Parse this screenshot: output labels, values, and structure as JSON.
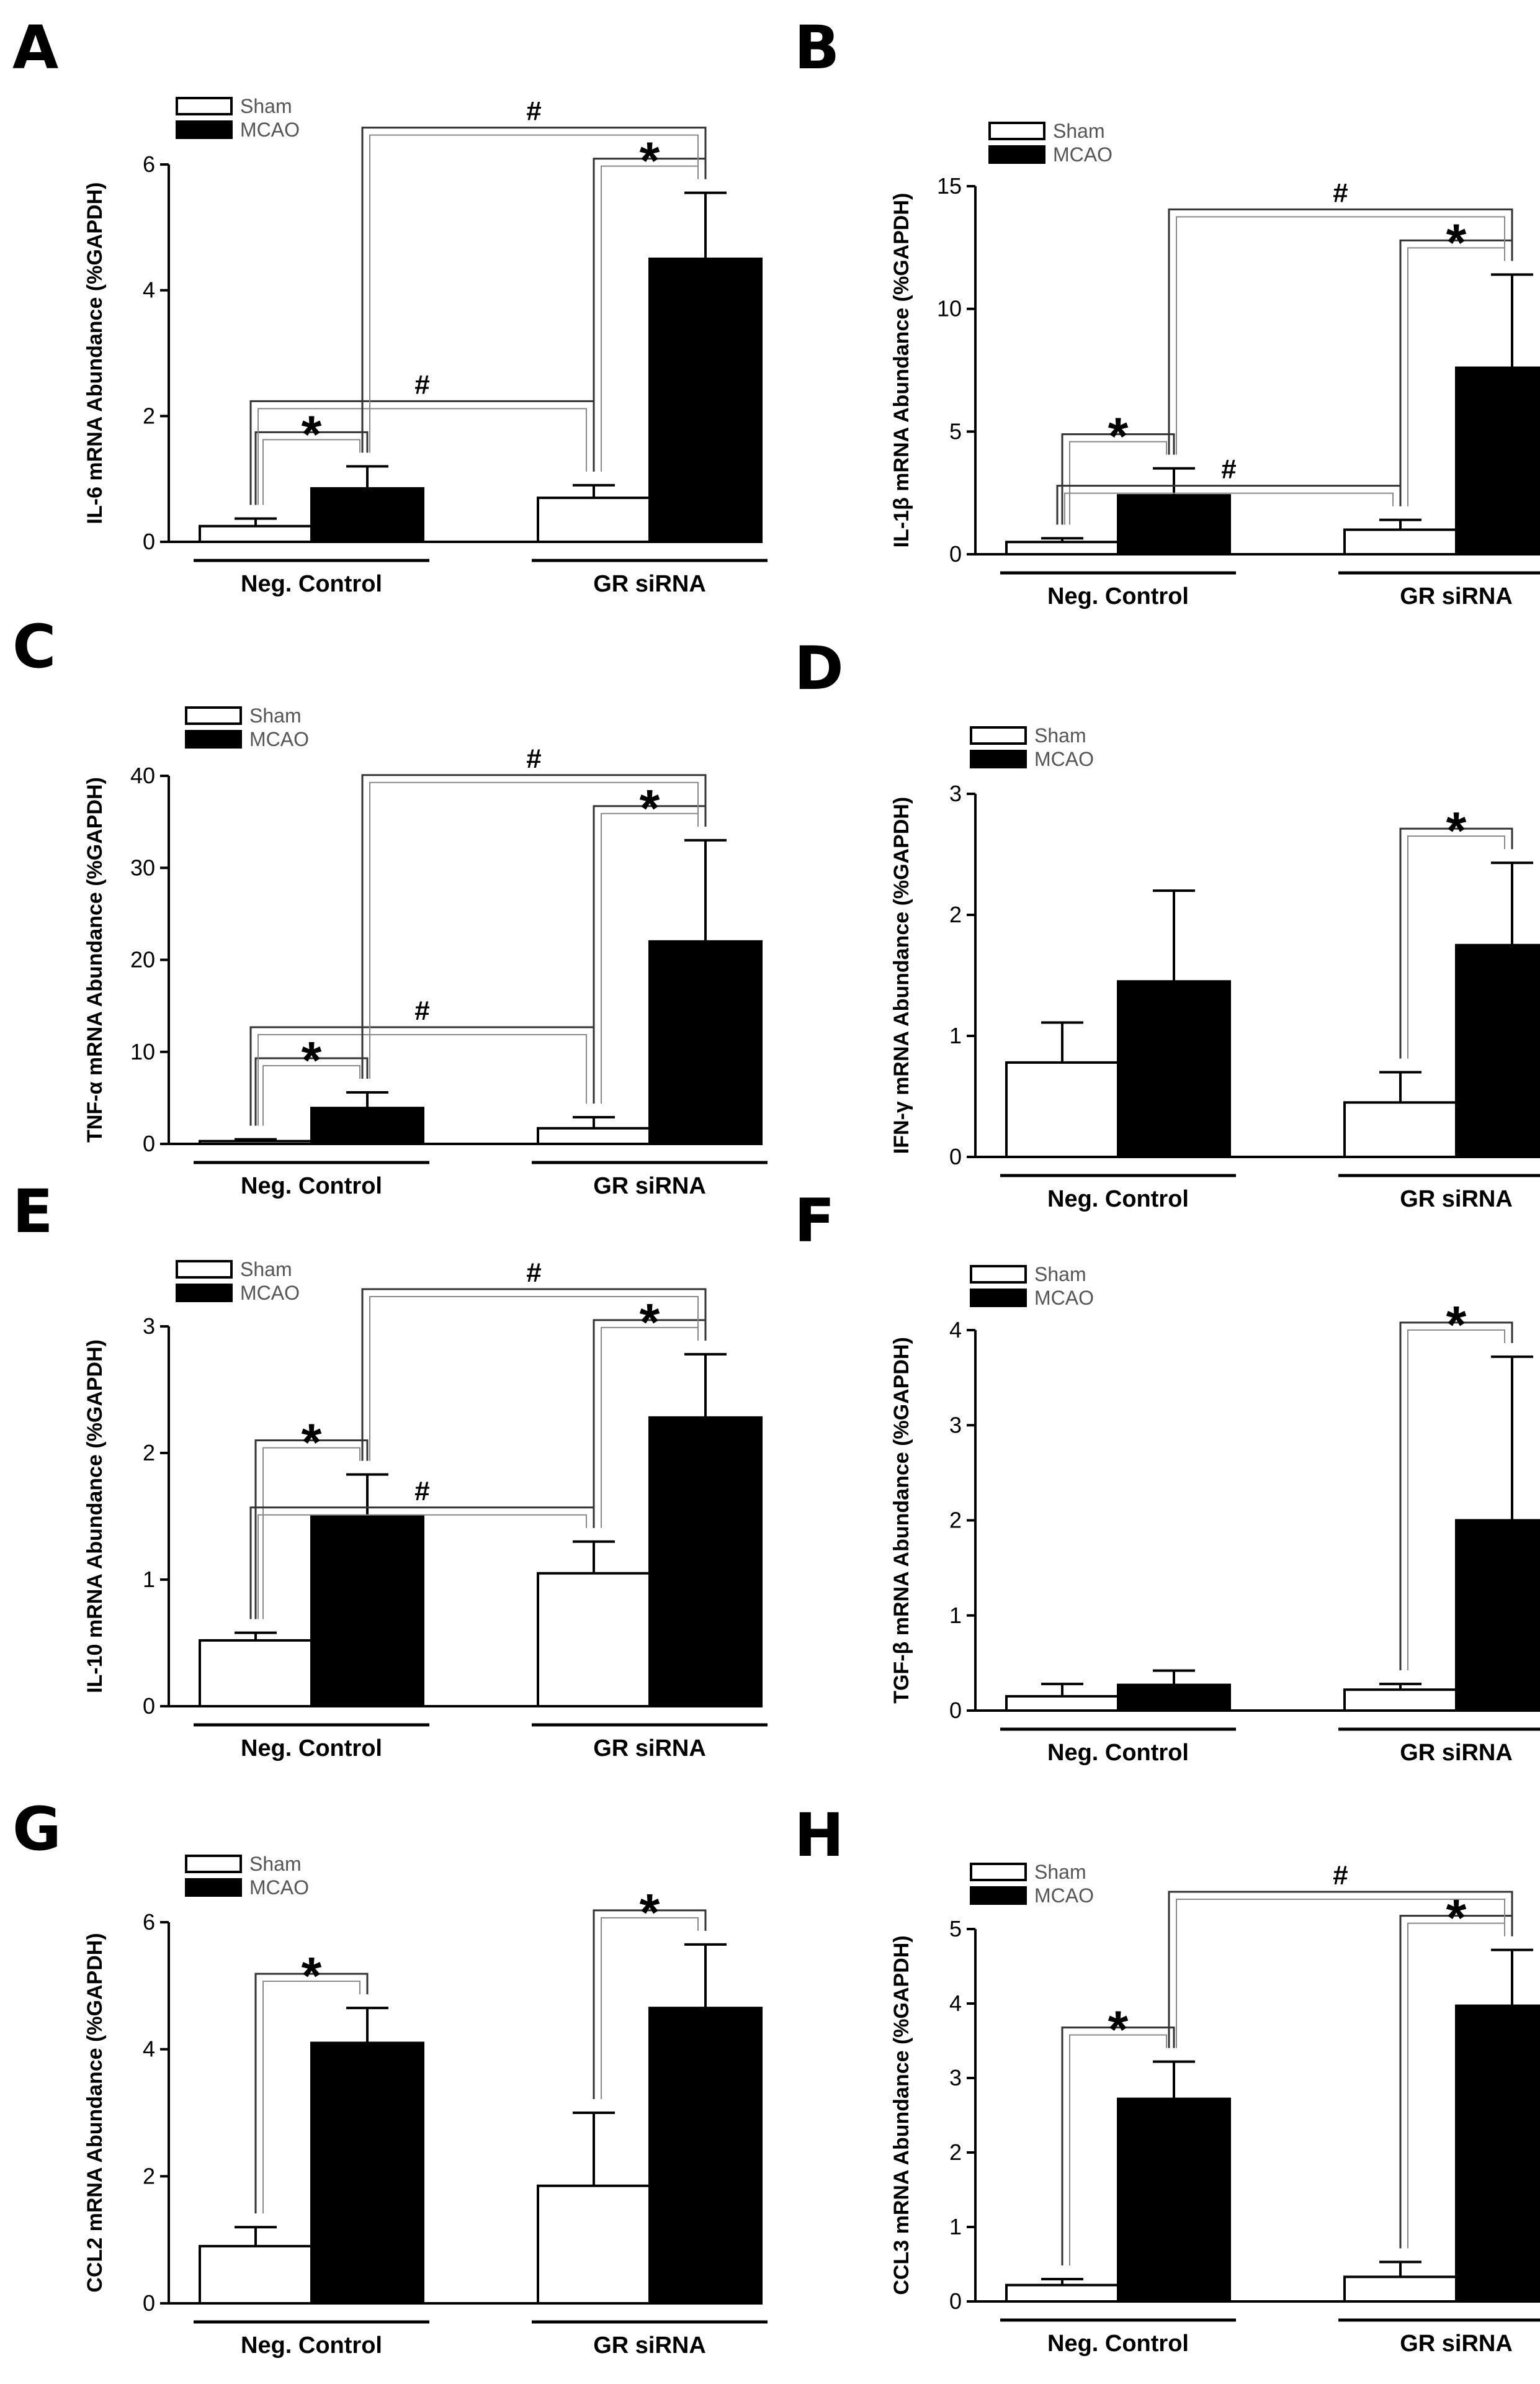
{
  "figure": {
    "legend": {
      "sham": "Sham",
      "mcao": "MCAO"
    },
    "groups": [
      "Neg. Control",
      "GR siRNA"
    ],
    "star": "*",
    "hash": "#",
    "colors": {
      "sham": "#ffffff",
      "mcao": "#000000",
      "stroke": "#000000",
      "text": "#000000"
    }
  },
  "chart_data": [
    {
      "panel": "A",
      "type": "bar",
      "ylabel": "IL-6 mRNA Abundance (%GAPDH)",
      "categories": [
        "Neg. Control",
        "GR siRNA"
      ],
      "ylim": [
        0,
        6
      ],
      "yticks": [
        0,
        2,
        4,
        6
      ],
      "series": [
        {
          "name": "Sham",
          "values": [
            0.25,
            0.7
          ],
          "errors": [
            0.12,
            0.2
          ]
        },
        {
          "name": "MCAO",
          "values": [
            0.85,
            4.5
          ],
          "errors": [
            0.35,
            1.05
          ]
        }
      ],
      "annotations": [
        {
          "type": "bracket",
          "from": [
            0,
            0
          ],
          "to": [
            0,
            1
          ],
          "label": "*"
        },
        {
          "type": "bracket",
          "from": [
            1,
            0
          ],
          "to": [
            1,
            1
          ],
          "label": "*"
        },
        {
          "type": "bracket",
          "from": [
            0,
            0
          ],
          "to": [
            1,
            0
          ],
          "label": "#"
        },
        {
          "type": "bracket",
          "from": [
            0,
            1
          ],
          "to": [
            1,
            1
          ],
          "label": "#"
        }
      ]
    },
    {
      "panel": "B",
      "type": "bar",
      "ylabel": "IL-1β mRNA Abundance (%GAPDH)",
      "categories": [
        "Neg. Control",
        "GR siRNA"
      ],
      "ylim": [
        0,
        15
      ],
      "yticks": [
        0,
        5,
        10,
        15
      ],
      "series": [
        {
          "name": "Sham",
          "values": [
            0.5,
            1.0
          ],
          "errors": [
            0.15,
            0.4
          ]
        },
        {
          "name": "MCAO",
          "values": [
            2.4,
            7.6
          ],
          "errors": [
            1.1,
            3.8
          ]
        }
      ],
      "annotations": [
        {
          "type": "bracket",
          "from": [
            0,
            0
          ],
          "to": [
            0,
            1
          ],
          "label": "*"
        },
        {
          "type": "bracket",
          "from": [
            1,
            0
          ],
          "to": [
            1,
            1
          ],
          "label": "*"
        },
        {
          "type": "bracket",
          "from": [
            0,
            0
          ],
          "to": [
            1,
            0
          ],
          "label": "#"
        },
        {
          "type": "bracket",
          "from": [
            0,
            1
          ],
          "to": [
            1,
            1
          ],
          "label": "#"
        }
      ]
    },
    {
      "panel": "C",
      "type": "bar",
      "ylabel": "TNF-α mRNA Abundance (%GAPDH)",
      "categories": [
        "Neg. Control",
        "GR siRNA"
      ],
      "ylim": [
        0,
        40
      ],
      "yticks": [
        0,
        10,
        20,
        30,
        40
      ],
      "series": [
        {
          "name": "Sham",
          "values": [
            0.3,
            1.7
          ],
          "errors": [
            0.2,
            1.2
          ]
        },
        {
          "name": "MCAO",
          "values": [
            3.9,
            22.0
          ],
          "errors": [
            1.7,
            11.0
          ]
        }
      ],
      "annotations": [
        {
          "type": "bracket",
          "from": [
            0,
            0
          ],
          "to": [
            0,
            1
          ],
          "label": "*"
        },
        {
          "type": "bracket",
          "from": [
            1,
            0
          ],
          "to": [
            1,
            1
          ],
          "label": "*"
        },
        {
          "type": "bracket",
          "from": [
            0,
            0
          ],
          "to": [
            1,
            0
          ],
          "label": "#"
        },
        {
          "type": "bracket",
          "from": [
            0,
            1
          ],
          "to": [
            1,
            1
          ],
          "label": "#"
        }
      ]
    },
    {
      "panel": "D",
      "type": "bar",
      "ylabel": "IFN-γ mRNA Abundance (%GAPDH)",
      "categories": [
        "Neg. Control",
        "GR siRNA"
      ],
      "ylim": [
        0,
        3
      ],
      "yticks": [
        0,
        1,
        2,
        3
      ],
      "series": [
        {
          "name": "Sham",
          "values": [
            0.78,
            0.45
          ],
          "errors": [
            0.33,
            0.25
          ]
        },
        {
          "name": "MCAO",
          "values": [
            1.45,
            1.75
          ],
          "errors": [
            0.75,
            0.68
          ]
        }
      ],
      "annotations": [
        {
          "type": "bracket",
          "from": [
            1,
            0
          ],
          "to": [
            1,
            1
          ],
          "label": "*"
        }
      ]
    },
    {
      "panel": "E",
      "type": "bar",
      "ylabel": "IL-10 mRNA Abundance (%GAPDH)",
      "categories": [
        "Neg. Control",
        "GR siRNA"
      ],
      "ylim": [
        0,
        3
      ],
      "yticks": [
        0,
        1,
        2,
        3
      ],
      "series": [
        {
          "name": "Sham",
          "values": [
            0.52,
            1.05
          ],
          "errors": [
            0.06,
            0.25
          ]
        },
        {
          "name": "MCAO",
          "values": [
            1.5,
            2.28
          ],
          "errors": [
            0.33,
            0.5
          ]
        }
      ],
      "annotations": [
        {
          "type": "bracket",
          "from": [
            0,
            0
          ],
          "to": [
            0,
            1
          ],
          "label": "*"
        },
        {
          "type": "bracket",
          "from": [
            1,
            0
          ],
          "to": [
            1,
            1
          ],
          "label": "*"
        },
        {
          "type": "bracket",
          "from": [
            0,
            0
          ],
          "to": [
            1,
            0
          ],
          "label": "#"
        },
        {
          "type": "bracket",
          "from": [
            0,
            1
          ],
          "to": [
            1,
            1
          ],
          "label": "#"
        }
      ]
    },
    {
      "panel": "F",
      "type": "bar",
      "ylabel": "TGF-β mRNA Abundance (%GAPDH)",
      "categories": [
        "Neg. Control",
        "GR siRNA"
      ],
      "ylim": [
        0,
        4
      ],
      "yticks": [
        0,
        1,
        2,
        3,
        4
      ],
      "series": [
        {
          "name": "Sham",
          "values": [
            0.15,
            0.22
          ],
          "errors": [
            0.13,
            0.06
          ]
        },
        {
          "name": "MCAO",
          "values": [
            0.27,
            2.0
          ],
          "errors": [
            0.15,
            1.72
          ]
        }
      ],
      "annotations": [
        {
          "type": "bracket",
          "from": [
            1,
            0
          ],
          "to": [
            1,
            1
          ],
          "label": "*"
        }
      ]
    },
    {
      "panel": "G",
      "type": "bar",
      "ylabel": "CCL2 mRNA Abundance (%GAPDH)",
      "categories": [
        "Neg. Control",
        "GR siRNA"
      ],
      "ylim": [
        0,
        6
      ],
      "yticks": [
        0,
        2,
        4,
        6
      ],
      "series": [
        {
          "name": "Sham",
          "values": [
            0.9,
            1.85
          ],
          "errors": [
            0.3,
            1.15
          ]
        },
        {
          "name": "MCAO",
          "values": [
            4.1,
            4.65
          ],
          "errors": [
            0.55,
            1.0
          ]
        }
      ],
      "annotations": [
        {
          "type": "bracket",
          "from": [
            0,
            0
          ],
          "to": [
            0,
            1
          ],
          "label": "*"
        },
        {
          "type": "bracket",
          "from": [
            1,
            0
          ],
          "to": [
            1,
            1
          ],
          "label": "*"
        }
      ]
    },
    {
      "panel": "H",
      "type": "bar",
      "ylabel": "CCL3 mRNA Abundance (%GAPDH)",
      "categories": [
        "Neg. Control",
        "GR siRNA"
      ],
      "ylim": [
        0,
        5
      ],
      "yticks": [
        0,
        1,
        2,
        3,
        4,
        5
      ],
      "series": [
        {
          "name": "Sham",
          "values": [
            0.22,
            0.33
          ],
          "errors": [
            0.08,
            0.2
          ]
        },
        {
          "name": "MCAO",
          "values": [
            2.72,
            3.97
          ],
          "errors": [
            0.5,
            0.75
          ]
        }
      ],
      "annotations": [
        {
          "type": "bracket",
          "from": [
            0,
            0
          ],
          "to": [
            0,
            1
          ],
          "label": "*"
        },
        {
          "type": "bracket",
          "from": [
            1,
            0
          ],
          "to": [
            1,
            1
          ],
          "label": "*"
        },
        {
          "type": "bracket",
          "from": [
            0,
            1
          ],
          "to": [
            1,
            1
          ],
          "label": "#"
        }
      ]
    }
  ]
}
